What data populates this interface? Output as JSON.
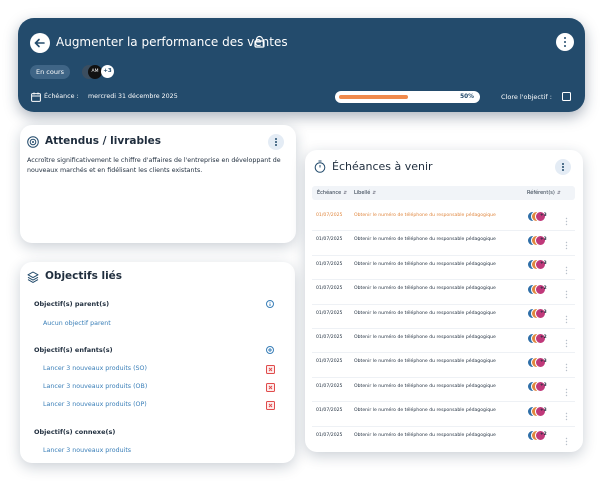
{
  "header": {
    "title": "Augmenter la performance des ventes",
    "status": "En cours",
    "avatar_initials": "AM",
    "avatar_more": "+3",
    "deadline_label": "Échéance :",
    "deadline": "mercredi 31 décembre 2025",
    "progress": {
      "value": 50,
      "label": "50%"
    },
    "close_label": "Clore l'objectif :"
  },
  "deliverables": {
    "title": "Attendus / livrables",
    "text": "Accroître significativement le chiffre d'affaires de l'entreprise en développant de nouveaux marchés et en fidélisant les clients existants."
  },
  "linked": {
    "title": "Objectifs liés",
    "parent_label": "Objectif(s) parent(s)",
    "parent_empty": "Aucun objectif parent",
    "children_label": "Objectif(s) enfants(s)",
    "children": [
      "Lancer 3 nouveaux produits (SO)",
      "Lancer 3 nouveaux produits (OB)",
      "Lancer 3 nouveaux produits (OP)"
    ],
    "related_label": "Objectif(s) connexe(s)",
    "related": [
      "Lancer 3 nouveaux produits"
    ]
  },
  "deadlines": {
    "title": "Échéances à venir",
    "columns": [
      "Échéance",
      "Libellé",
      "Référent(s)"
    ],
    "rows": [
      {
        "date": "01/07/2025",
        "label": "Obtenir le numéro de téléphone du responsable pédagogique",
        "more": "+3"
      },
      {
        "date": "01/07/2025",
        "label": "Obtenir le numéro de téléphone du responsable pédagogique",
        "more": "+3"
      },
      {
        "date": "01/07/2025",
        "label": "Obtenir le numéro de téléphone du responsable pédagogique",
        "more": "+3"
      },
      {
        "date": "01/07/2025",
        "label": "Obtenir le numéro de téléphone du responsable pédagogique",
        "more": "+2"
      },
      {
        "date": "01/07/2025",
        "label": "Obtenir le numéro de téléphone du responsable pédagogique",
        "more": "+3"
      },
      {
        "date": "01/07/2025",
        "label": "Obtenir le numéro de téléphone du responsable pédagogique",
        "more": "+2"
      },
      {
        "date": "01/07/2025",
        "label": "Obtenir le numéro de téléphone du responsable pédagogique",
        "more": "+3"
      },
      {
        "date": "01/07/2025",
        "label": "Obtenir le numéro de téléphone du responsable pédagogique",
        "more": "+3"
      },
      {
        "date": "01/07/2025",
        "label": "Obtenir le numéro de téléphone du responsable pédagogique",
        "more": "+3"
      },
      {
        "date": "01/07/2025",
        "label": "Obtenir le numéro de téléphone du responsable pédagogique",
        "more": "+2"
      }
    ]
  }
}
